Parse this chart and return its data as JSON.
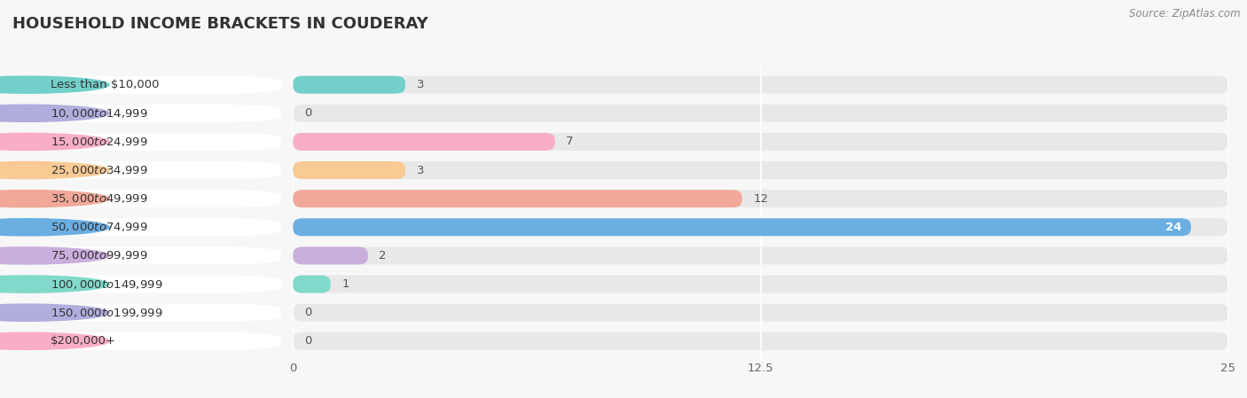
{
  "title": "HOUSEHOLD INCOME BRACKETS IN COUDERAY",
  "source": "Source: ZipAtlas.com",
  "categories": [
    "Less than $10,000",
    "$10,000 to $14,999",
    "$15,000 to $24,999",
    "$25,000 to $34,999",
    "$35,000 to $49,999",
    "$50,000 to $74,999",
    "$75,000 to $99,999",
    "$100,000 to $149,999",
    "$150,000 to $199,999",
    "$200,000+"
  ],
  "values": [
    3,
    0,
    7,
    3,
    12,
    24,
    2,
    1,
    0,
    0
  ],
  "bar_colors": [
    "#72cfc9",
    "#b0aedd",
    "#f9adc6",
    "#f9ca94",
    "#f2a898",
    "#6aaee2",
    "#caaedd",
    "#80d9cb",
    "#b0aedd",
    "#f9adc6"
  ],
  "xlim": [
    0,
    25
  ],
  "xticks": [
    0,
    12.5,
    25
  ],
  "background_color": "#f7f7f7",
  "bar_bg_color": "#e8e8e8",
  "label_bg_color": "#ffffff",
  "title_fontsize": 13,
  "label_fontsize": 9.5,
  "value_fontsize": 9.5,
  "tick_fontsize": 9.5
}
